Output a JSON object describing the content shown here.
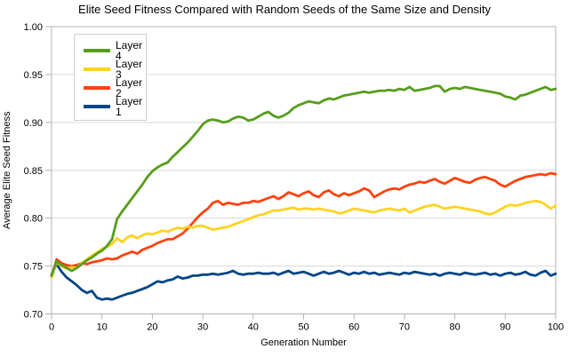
{
  "chart_data": {
    "type": "line",
    "title": "Elite Seed Fitness Compared with Random Seeds of the Same Size and Density",
    "xlabel": "Generation Number",
    "ylabel": "Average Elite Seed Fitness",
    "xlim": [
      0,
      100
    ],
    "ylim": [
      0.7,
      1.0
    ],
    "x_start": 0,
    "x_step": 1,
    "x_ticks": [
      "0",
      "10",
      "20",
      "30",
      "40",
      "50",
      "60",
      "70",
      "80",
      "90",
      "100"
    ],
    "y_ticks": [
      "1.00",
      "0.95",
      "0.90",
      "0.85",
      "0.80",
      "0.75",
      "0.70"
    ],
    "grid": "horizontal",
    "grid_color": "#d9d9d9",
    "frame_color": "#b3b3b3",
    "legend_position": "top-left",
    "series": [
      {
        "name": "Layer 4",
        "color": "#579D1C",
        "values": [
          0.74,
          0.755,
          0.751,
          0.748,
          0.745,
          0.748,
          0.752,
          0.756,
          0.759,
          0.763,
          0.766,
          0.771,
          0.778,
          0.799,
          0.807,
          0.814,
          0.821,
          0.828,
          0.835,
          0.843,
          0.849,
          0.853,
          0.856,
          0.858,
          0.864,
          0.869,
          0.874,
          0.879,
          0.885,
          0.891,
          0.898,
          0.902,
          0.903,
          0.902,
          0.9,
          0.901,
          0.904,
          0.906,
          0.905,
          0.902,
          0.903,
          0.906,
          0.909,
          0.911,
          0.907,
          0.905,
          0.907,
          0.91,
          0.915,
          0.918,
          0.92,
          0.922,
          0.921,
          0.92,
          0.923,
          0.925,
          0.924,
          0.926,
          0.928,
          0.929,
          0.93,
          0.931,
          0.932,
          0.931,
          0.932,
          0.933,
          0.933,
          0.934,
          0.933,
          0.935,
          0.934,
          0.937,
          0.933,
          0.934,
          0.935,
          0.936,
          0.938,
          0.938,
          0.932,
          0.935,
          0.936,
          0.935,
          0.937,
          0.936,
          0.935,
          0.934,
          0.933,
          0.932,
          0.931,
          0.93,
          0.927,
          0.926,
          0.924,
          0.928,
          0.929,
          0.931,
          0.933,
          0.935,
          0.937,
          0.934,
          0.935
        ]
      },
      {
        "name": "Layer 3",
        "color": "#FFD320",
        "values": [
          0.738,
          0.754,
          0.75,
          0.747,
          0.749,
          0.748,
          0.753,
          0.757,
          0.761,
          0.764,
          0.768,
          0.77,
          0.773,
          0.779,
          0.775,
          0.78,
          0.782,
          0.779,
          0.782,
          0.784,
          0.783,
          0.785,
          0.787,
          0.786,
          0.788,
          0.79,
          0.789,
          0.791,
          0.79,
          0.792,
          0.792,
          0.79,
          0.788,
          0.789,
          0.79,
          0.791,
          0.793,
          0.795,
          0.797,
          0.799,
          0.801,
          0.803,
          0.804,
          0.806,
          0.808,
          0.808,
          0.809,
          0.81,
          0.811,
          0.809,
          0.81,
          0.81,
          0.809,
          0.81,
          0.809,
          0.808,
          0.807,
          0.805,
          0.806,
          0.808,
          0.81,
          0.809,
          0.808,
          0.807,
          0.806,
          0.808,
          0.809,
          0.81,
          0.809,
          0.808,
          0.81,
          0.806,
          0.808,
          0.81,
          0.812,
          0.813,
          0.814,
          0.812,
          0.81,
          0.811,
          0.812,
          0.811,
          0.81,
          0.809,
          0.808,
          0.807,
          0.805,
          0.804,
          0.806,
          0.809,
          0.812,
          0.814,
          0.813,
          0.814,
          0.816,
          0.817,
          0.818,
          0.817,
          0.814,
          0.81,
          0.813
        ]
      },
      {
        "name": "Layer 2",
        "color": "#FF420E",
        "values": [
          0.739,
          0.757,
          0.753,
          0.751,
          0.75,
          0.751,
          0.753,
          0.752,
          0.754,
          0.755,
          0.756,
          0.758,
          0.757,
          0.758,
          0.761,
          0.763,
          0.765,
          0.763,
          0.767,
          0.769,
          0.771,
          0.774,
          0.776,
          0.778,
          0.778,
          0.781,
          0.784,
          0.789,
          0.795,
          0.801,
          0.806,
          0.81,
          0.816,
          0.818,
          0.814,
          0.816,
          0.815,
          0.814,
          0.816,
          0.816,
          0.818,
          0.817,
          0.819,
          0.821,
          0.823,
          0.82,
          0.823,
          0.827,
          0.825,
          0.823,
          0.826,
          0.828,
          0.824,
          0.822,
          0.827,
          0.829,
          0.825,
          0.823,
          0.826,
          0.824,
          0.826,
          0.828,
          0.831,
          0.829,
          0.822,
          0.825,
          0.828,
          0.83,
          0.831,
          0.83,
          0.833,
          0.835,
          0.836,
          0.838,
          0.837,
          0.839,
          0.841,
          0.838,
          0.836,
          0.839,
          0.842,
          0.84,
          0.838,
          0.837,
          0.84,
          0.842,
          0.843,
          0.841,
          0.839,
          0.835,
          0.833,
          0.836,
          0.839,
          0.841,
          0.843,
          0.844,
          0.845,
          0.846,
          0.845,
          0.847,
          0.846
        ]
      },
      {
        "name": "Layer 1",
        "color": "#004586",
        "values": [
          0.741,
          0.752,
          0.744,
          0.738,
          0.734,
          0.73,
          0.725,
          0.722,
          0.724,
          0.717,
          0.715,
          0.716,
          0.715,
          0.717,
          0.719,
          0.721,
          0.722,
          0.724,
          0.726,
          0.728,
          0.731,
          0.734,
          0.733,
          0.735,
          0.736,
          0.739,
          0.737,
          0.738,
          0.74,
          0.74,
          0.741,
          0.741,
          0.742,
          0.741,
          0.742,
          0.743,
          0.745,
          0.742,
          0.741,
          0.742,
          0.742,
          0.743,
          0.742,
          0.742,
          0.743,
          0.741,
          0.743,
          0.745,
          0.742,
          0.743,
          0.744,
          0.742,
          0.74,
          0.742,
          0.744,
          0.742,
          0.743,
          0.745,
          0.743,
          0.741,
          0.743,
          0.742,
          0.744,
          0.742,
          0.743,
          0.741,
          0.742,
          0.743,
          0.742,
          0.741,
          0.743,
          0.742,
          0.744,
          0.743,
          0.742,
          0.741,
          0.742,
          0.74,
          0.742,
          0.743,
          0.742,
          0.741,
          0.743,
          0.742,
          0.741,
          0.742,
          0.743,
          0.741,
          0.742,
          0.74,
          0.742,
          0.743,
          0.741,
          0.742,
          0.744,
          0.741,
          0.74,
          0.743,
          0.745,
          0.74,
          0.742
        ]
      }
    ]
  }
}
